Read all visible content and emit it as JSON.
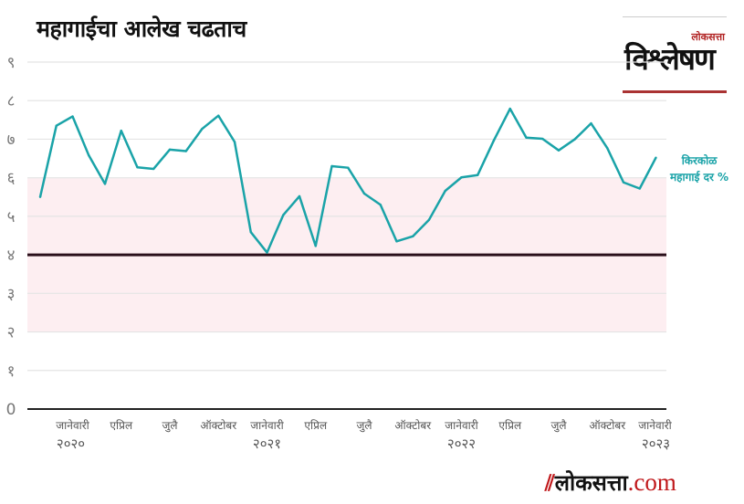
{
  "header": {
    "title": "महागाईचा आलेख चढताच"
  },
  "logo": {
    "small": "लोकसत्ता",
    "big": "विश्लेषण"
  },
  "footer": {
    "brand": "लोकसत्ता",
    "domain": ".com"
  },
  "chart_data": {
    "type": "line",
    "title": "महागाईचा आलेख चढताच",
    "xlabel": "",
    "ylabel": "",
    "ylim": [
      0,
      9
    ],
    "y_ticks": [
      0,
      1,
      2,
      3,
      4,
      5,
      6,
      7,
      8,
      9
    ],
    "y_tick_labels": [
      "0",
      "१",
      "२",
      "३",
      "४",
      "५",
      "६",
      "७",
      "८",
      "९"
    ],
    "x_tick_labels": [
      {
        "index": 2,
        "label": "जानेवारी",
        "year": "२०२०"
      },
      {
        "index": 5,
        "label": "एप्रिल"
      },
      {
        "index": 8,
        "label": "जुलै"
      },
      {
        "index": 11,
        "label": "ऑक्टोबर"
      },
      {
        "index": 14,
        "label": "जानेवारी",
        "year": "२०२१"
      },
      {
        "index": 17,
        "label": "एप्रिल"
      },
      {
        "index": 20,
        "label": "जुलै"
      },
      {
        "index": 23,
        "label": "ऑक्टोबर"
      },
      {
        "index": 26,
        "label": "जानेवारी",
        "year": "२०२२"
      },
      {
        "index": 29,
        "label": "एप्रिल"
      },
      {
        "index": 32,
        "label": "जुलै"
      },
      {
        "index": 35,
        "label": "ऑक्टोबर"
      },
      {
        "index": 38,
        "label": "जानेवारी",
        "year": "२०२३"
      }
    ],
    "target_band": [
      2,
      6
    ],
    "target_line": 4,
    "series": [
      {
        "name": "किरकोळ महागाई दर %",
        "name_lines": [
          "किरकोळ",
          "महागाई दर %"
        ],
        "color": "#1aa3a8",
        "values": [
          5.5,
          7.35,
          7.59,
          6.58,
          5.84,
          7.22,
          6.27,
          6.23,
          6.73,
          6.69,
          7.27,
          7.61,
          6.93,
          4.59,
          4.06,
          5.03,
          5.52,
          4.23,
          6.3,
          6.26,
          5.59,
          5.3,
          4.35,
          4.48,
          4.91,
          5.66,
          6.01,
          6.07,
          6.97,
          7.79,
          7.04,
          7.01,
          6.71,
          7.0,
          7.41,
          6.77,
          5.88,
          5.72,
          6.52
        ]
      }
    ],
    "band_color": "#fdeef1",
    "target_color": "#2a0f1a",
    "grid": true
  }
}
